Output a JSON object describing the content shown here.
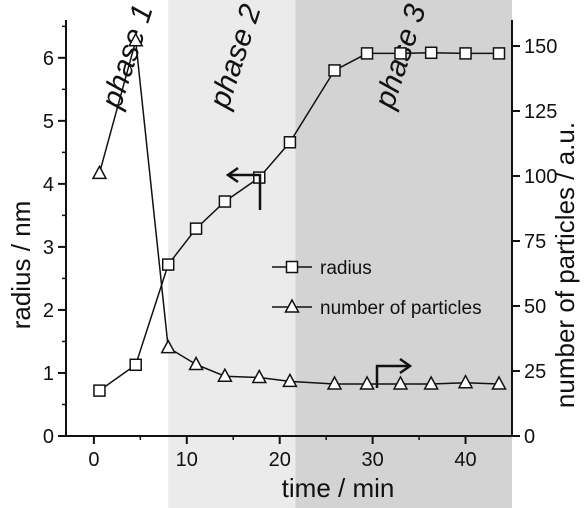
{
  "chart_data": {
    "type": "line",
    "title": "",
    "xlabel": "time / min",
    "ylabel_left": "radius / nm",
    "ylabel_right": "number of particles / a.u.",
    "xlim": [
      -3,
      45
    ],
    "ylim_left": [
      0,
      6.6
    ],
    "ylim_right": [
      0,
      160
    ],
    "x_ticks": [
      0,
      10,
      20,
      30,
      40
    ],
    "y_left_ticks": [
      0,
      1,
      2,
      3,
      4,
      5,
      6
    ],
    "y_right_ticks": [
      0,
      25,
      50,
      75,
      100,
      125,
      150
    ],
    "grid": false,
    "legend_position": "center-right",
    "phases": [
      {
        "label": "phase 1",
        "x_range": [
          -3,
          8
        ],
        "color": "#ffffff"
      },
      {
        "label": "phase 2",
        "x_range": [
          8,
          21.7
        ],
        "color": "#ebebeb"
      },
      {
        "label": "phase 3",
        "x_range": [
          21.7,
          45
        ],
        "color": "#d3d3d3"
      }
    ],
    "series": [
      {
        "name": "radius",
        "axis": "left",
        "marker": "square",
        "x": [
          0.6,
          4.5,
          8,
          11,
          14.1,
          17.8,
          21.1,
          25.9,
          29.4,
          33,
          36.3,
          40,
          43.6
        ],
        "y": [
          0.72,
          1.13,
          2.72,
          3.29,
          3.72,
          4.1,
          4.66,
          5.8,
          6.07,
          6.07,
          6.08,
          6.07,
          6.07
        ]
      },
      {
        "name": "number of particles",
        "axis": "right",
        "marker": "triangle",
        "x": [
          0.6,
          4.5,
          8,
          11,
          14.1,
          17.8,
          21.1,
          25.9,
          29.4,
          33,
          36.3,
          40,
          43.6
        ],
        "y": [
          101,
          152,
          34,
          27.5,
          23,
          22.5,
          21,
          20,
          20,
          20,
          20,
          20.5,
          20
        ]
      }
    ]
  },
  "colors": {
    "phase2_bg": "#ebebeb",
    "phase3_bg": "#d3d3d3",
    "ink": "#111111"
  }
}
